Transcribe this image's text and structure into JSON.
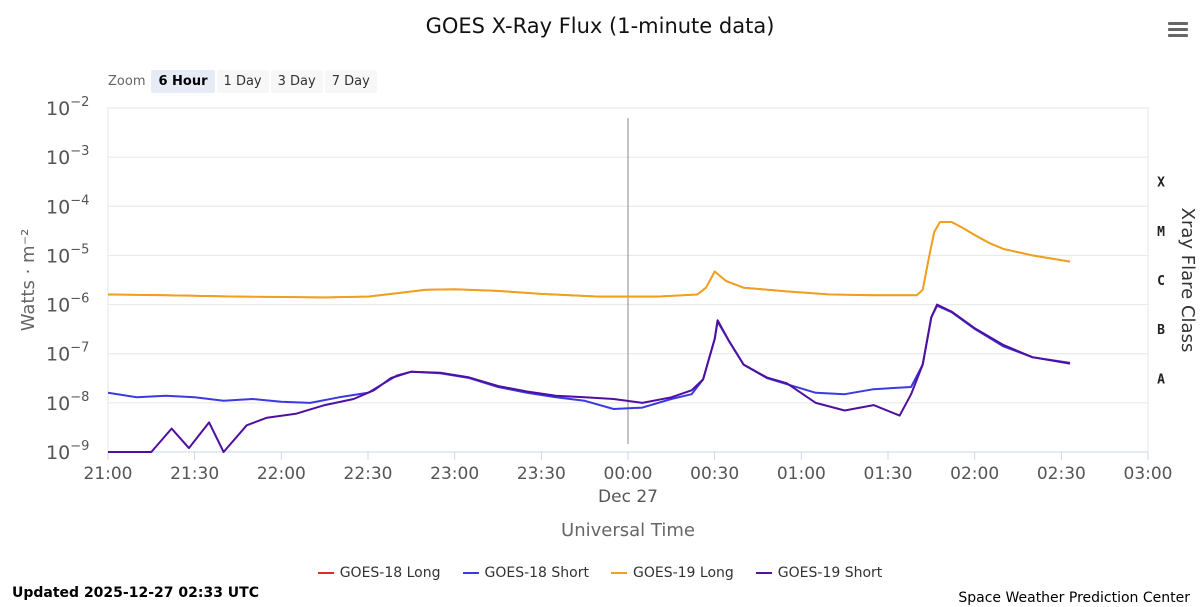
{
  "title": "GOES X-Ray Flux (1-minute data)",
  "zoom": {
    "label": "Zoom",
    "options": [
      "6 Hour",
      "1 Day",
      "3 Day",
      "7 Day"
    ],
    "selected": "6 Hour"
  },
  "updated": "Updated 2025-12-27 02:33 UTC",
  "credit": "Space Weather Prediction Center",
  "menu_icon": "hamburger-menu-icon",
  "chart_data": {
    "type": "line",
    "title": "GOES X-Ray Flux (1-minute data)",
    "xlabel": "Universal Time",
    "ylabel": "Watts · m⁻²",
    "y2label": "Xray Flare Class",
    "yscale": "log",
    "ylim": [
      1e-09,
      0.01
    ],
    "xlim": [
      "21:00",
      "03:00"
    ],
    "x_ticks": [
      "21:00",
      "21:30",
      "22:00",
      "22:30",
      "23:00",
      "23:30",
      "00:00",
      "00:30",
      "01:00",
      "01:30",
      "02:00",
      "02:30",
      "03:00"
    ],
    "date_label": {
      "at": "00:00",
      "text": "Dec 27"
    },
    "y_ticks": [
      {
        "base": "10",
        "exp": "−2"
      },
      {
        "base": "10",
        "exp": "−3"
      },
      {
        "base": "10",
        "exp": "−4"
      },
      {
        "base": "10",
        "exp": "−5"
      },
      {
        "base": "10",
        "exp": "−6"
      },
      {
        "base": "10",
        "exp": "−7"
      },
      {
        "base": "10",
        "exp": "−8"
      },
      {
        "base": "10",
        "exp": "−9"
      }
    ],
    "flare_classes": [
      {
        "label": "X",
        "value": 0.0001
      },
      {
        "label": "M",
        "value": 1e-05
      },
      {
        "label": "C",
        "value": 1e-06
      },
      {
        "label": "B",
        "value": 1e-07
      },
      {
        "label": "A",
        "value": 1e-08
      }
    ],
    "vertical_marker": "00:00",
    "grid": true,
    "legend_position": "bottom",
    "series": [
      {
        "name": "GOES-18 Long",
        "color": "#e8242c",
        "points": [
          [
            "21:00",
            1.6e-06
          ],
          [
            "21:20",
            1.55e-06
          ],
          [
            "21:45",
            1.45e-06
          ],
          [
            "22:15",
            1.4e-06
          ],
          [
            "22:30",
            1.45e-06
          ],
          [
            "22:40",
            1.7e-06
          ],
          [
            "22:50",
            2e-06
          ],
          [
            "23:00",
            2.05e-06
          ],
          [
            "23:15",
            1.9e-06
          ],
          [
            "23:30",
            1.65e-06
          ],
          [
            "23:50",
            1.45e-06
          ],
          [
            "00:10",
            1.45e-06
          ],
          [
            "00:24",
            1.6e-06
          ],
          [
            "00:27",
            2.2e-06
          ],
          [
            "00:30",
            4.7e-06
          ],
          [
            "00:34",
            3e-06
          ],
          [
            "00:40",
            2.2e-06
          ],
          [
            "00:55",
            1.85e-06
          ],
          [
            "01:10",
            1.6e-06
          ],
          [
            "01:25",
            1.55e-06
          ],
          [
            "01:40",
            1.55e-06
          ],
          [
            "01:42",
            2e-06
          ],
          [
            "01:44",
            8e-06
          ],
          [
            "01:46",
            3e-05
          ],
          [
            "01:48",
            4.8e-05
          ],
          [
            "01:52",
            4.8e-05
          ],
          [
            "01:56",
            3.6e-05
          ],
          [
            "02:00",
            2.6e-05
          ],
          [
            "02:05",
            1.8e-05
          ],
          [
            "02:10",
            1.35e-05
          ],
          [
            "02:20",
            1e-05
          ],
          [
            "02:33",
            7.5e-06
          ]
        ]
      },
      {
        "name": "GOES-18 Short",
        "color": "#3a3ae0",
        "points": [
          [
            "21:00",
            1.6e-08
          ],
          [
            "21:10",
            1.3e-08
          ],
          [
            "21:20",
            1.4e-08
          ],
          [
            "21:30",
            1.3e-08
          ],
          [
            "21:40",
            1.1e-08
          ],
          [
            "21:50",
            1.2e-08
          ],
          [
            "22:00",
            1.05e-08
          ],
          [
            "22:10",
            1e-08
          ],
          [
            "22:20",
            1.3e-08
          ],
          [
            "22:30",
            1.6e-08
          ],
          [
            "22:35",
            2.4e-08
          ],
          [
            "22:40",
            3.6e-08
          ],
          [
            "22:45",
            4.3e-08
          ],
          [
            "22:55",
            4e-08
          ],
          [
            "23:05",
            3.2e-08
          ],
          [
            "23:15",
            2.1e-08
          ],
          [
            "23:25",
            1.6e-08
          ],
          [
            "23:35",
            1.3e-08
          ],
          [
            "23:45",
            1.1e-08
          ],
          [
            "23:55",
            7.5e-09
          ],
          [
            "00:05",
            8e-09
          ],
          [
            "00:15",
            1.2e-08
          ],
          [
            "00:22",
            1.5e-08
          ],
          [
            "00:26",
            3e-08
          ],
          [
            "00:30",
            2e-07
          ],
          [
            "00:31",
            4.5e-07
          ],
          [
            "00:35",
            1.8e-07
          ],
          [
            "00:40",
            6e-08
          ],
          [
            "00:48",
            3.2e-08
          ],
          [
            "00:55",
            2.4e-08
          ],
          [
            "01:05",
            1.6e-08
          ],
          [
            "01:15",
            1.5e-08
          ],
          [
            "01:25",
            1.9e-08
          ],
          [
            "01:38",
            2.1e-08
          ],
          [
            "01:42",
            6e-08
          ],
          [
            "01:45",
            5.5e-07
          ],
          [
            "01:47",
            9.5e-07
          ],
          [
            "01:52",
            7e-07
          ],
          [
            "02:00",
            3.2e-07
          ],
          [
            "02:10",
            1.4e-07
          ],
          [
            "02:20",
            8.5e-08
          ],
          [
            "02:33",
            6.5e-08
          ]
        ]
      },
      {
        "name": "GOES-19 Long",
        "color": "#f0a01c",
        "points": [
          [
            "21:00",
            1.6e-06
          ],
          [
            "21:20",
            1.55e-06
          ],
          [
            "21:45",
            1.45e-06
          ],
          [
            "22:15",
            1.4e-06
          ],
          [
            "22:30",
            1.45e-06
          ],
          [
            "22:40",
            1.7e-06
          ],
          [
            "22:50",
            2e-06
          ],
          [
            "23:00",
            2.05e-06
          ],
          [
            "23:15",
            1.9e-06
          ],
          [
            "23:30",
            1.65e-06
          ],
          [
            "23:50",
            1.45e-06
          ],
          [
            "00:10",
            1.45e-06
          ],
          [
            "00:24",
            1.6e-06
          ],
          [
            "00:27",
            2.2e-06
          ],
          [
            "00:30",
            4.7e-06
          ],
          [
            "00:34",
            3e-06
          ],
          [
            "00:40",
            2.2e-06
          ],
          [
            "00:55",
            1.85e-06
          ],
          [
            "01:10",
            1.6e-06
          ],
          [
            "01:25",
            1.55e-06
          ],
          [
            "01:40",
            1.55e-06
          ],
          [
            "01:42",
            2e-06
          ],
          [
            "01:44",
            8e-06
          ],
          [
            "01:46",
            3e-05
          ],
          [
            "01:48",
            4.8e-05
          ],
          [
            "01:52",
            4.8e-05
          ],
          [
            "01:56",
            3.6e-05
          ],
          [
            "02:00",
            2.6e-05
          ],
          [
            "02:05",
            1.8e-05
          ],
          [
            "02:10",
            1.35e-05
          ],
          [
            "02:20",
            1e-05
          ],
          [
            "02:33",
            7.5e-06
          ]
        ]
      },
      {
        "name": "GOES-19 Short",
        "color": "#4f0fa0",
        "points": [
          [
            "21:00",
            1e-09
          ],
          [
            "21:15",
            1e-09
          ],
          [
            "21:22",
            3e-09
          ],
          [
            "21:28",
            1.2e-09
          ],
          [
            "21:35",
            4e-09
          ],
          [
            "21:40",
            1e-09
          ],
          [
            "21:48",
            3.5e-09
          ],
          [
            "21:55",
            5e-09
          ],
          [
            "22:05",
            6e-09
          ],
          [
            "22:15",
            9e-09
          ],
          [
            "22:25",
            1.2e-08
          ],
          [
            "22:32",
            1.8e-08
          ],
          [
            "22:38",
            3.2e-08
          ],
          [
            "22:45",
            4.3e-08
          ],
          [
            "22:55",
            4.1e-08
          ],
          [
            "23:05",
            3.3e-08
          ],
          [
            "23:15",
            2.2e-08
          ],
          [
            "23:25",
            1.7e-08
          ],
          [
            "23:35",
            1.4e-08
          ],
          [
            "23:45",
            1.3e-08
          ],
          [
            "23:55",
            1.2e-08
          ],
          [
            "00:05",
            1e-08
          ],
          [
            "00:15",
            1.3e-08
          ],
          [
            "00:22",
            1.8e-08
          ],
          [
            "00:26",
            3e-08
          ],
          [
            "00:30",
            2e-07
          ],
          [
            "00:31",
            4.8e-07
          ],
          [
            "00:35",
            1.8e-07
          ],
          [
            "00:40",
            6e-08
          ],
          [
            "00:48",
            3.3e-08
          ],
          [
            "00:55",
            2.5e-08
          ],
          [
            "01:05",
            1e-08
          ],
          [
            "01:15",
            7e-09
          ],
          [
            "01:25",
            9e-09
          ],
          [
            "01:34",
            5.5e-09
          ],
          [
            "01:38",
            1.5e-08
          ],
          [
            "01:42",
            6e-08
          ],
          [
            "01:45",
            5.5e-07
          ],
          [
            "01:47",
            1e-06
          ],
          [
            "01:52",
            7.2e-07
          ],
          [
            "02:00",
            3.3e-07
          ],
          [
            "02:10",
            1.5e-07
          ],
          [
            "02:20",
            8.5e-08
          ],
          [
            "02:33",
            6.3e-08
          ]
        ]
      }
    ]
  }
}
